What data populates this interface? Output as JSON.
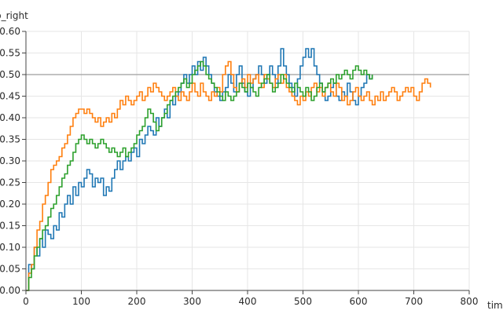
{
  "chart_data": {
    "type": "line",
    "xlabel": "time",
    "ylabel": "p_right",
    "xlim": [
      0,
      800
    ],
    "ylim": [
      0,
      0.6
    ],
    "x_ticks": [
      0,
      100,
      200,
      300,
      400,
      500,
      600,
      700,
      800
    ],
    "y_ticks": [
      0.0,
      0.05,
      0.1,
      0.15,
      0.2,
      0.25,
      0.3,
      0.35,
      0.4,
      0.45,
      0.5,
      0.55,
      0.6
    ],
    "y_tick_labels": [
      "0.00",
      "0.05",
      "0.10",
      "0.15",
      "0.20",
      "0.25",
      "0.30",
      "0.35",
      "0.40",
      "0.45",
      "0.50",
      "0.55",
      "0.60"
    ],
    "grid": true,
    "reference_line": {
      "y": 0.5,
      "color": "#9e9e9e"
    },
    "series": [
      {
        "color": "#1f77b4",
        "step": true,
        "x": [
          0,
          5,
          10,
          15,
          20,
          25,
          30,
          35,
          40,
          45,
          50,
          55,
          60,
          65,
          70,
          75,
          80,
          85,
          90,
          95,
          100,
          105,
          110,
          115,
          120,
          125,
          130,
          135,
          140,
          145,
          150,
          155,
          160,
          165,
          170,
          175,
          180,
          185,
          190,
          195,
          200,
          205,
          210,
          215,
          220,
          225,
          230,
          235,
          240,
          245,
          250,
          255,
          260,
          265,
          270,
          275,
          280,
          285,
          290,
          295,
          300,
          305,
          310,
          315,
          320,
          325,
          330,
          335,
          340,
          345,
          350,
          355,
          360,
          365,
          370,
          375,
          380,
          385,
          390,
          395,
          400,
          405,
          410,
          415,
          420,
          425,
          430,
          435,
          440,
          445,
          450,
          455,
          460,
          465,
          470,
          475,
          480,
          485,
          490,
          495,
          500,
          505,
          510,
          515,
          520,
          525,
          530,
          535,
          540,
          545,
          550,
          555,
          560,
          565,
          570,
          575,
          580,
          585,
          590,
          595,
          600,
          605,
          610,
          615,
          620,
          625
        ],
        "y": [
          0.0,
          0.06,
          0.05,
          0.1,
          0.08,
          0.12,
          0.1,
          0.14,
          0.13,
          0.12,
          0.15,
          0.14,
          0.18,
          0.17,
          0.2,
          0.22,
          0.2,
          0.24,
          0.22,
          0.25,
          0.24,
          0.26,
          0.28,
          0.27,
          0.24,
          0.26,
          0.25,
          0.26,
          0.22,
          0.24,
          0.23,
          0.26,
          0.28,
          0.3,
          0.28,
          0.3,
          0.31,
          0.3,
          0.32,
          0.33,
          0.31,
          0.35,
          0.34,
          0.36,
          0.38,
          0.37,
          0.36,
          0.4,
          0.38,
          0.4,
          0.42,
          0.4,
          0.44,
          0.43,
          0.45,
          0.46,
          0.48,
          0.5,
          0.48,
          0.5,
          0.52,
          0.5,
          0.53,
          0.51,
          0.54,
          0.52,
          0.5,
          0.48,
          0.46,
          0.45,
          0.44,
          0.46,
          0.47,
          0.5,
          0.48,
          0.46,
          0.5,
          0.52,
          0.48,
          0.46,
          0.45,
          0.47,
          0.49,
          0.5,
          0.52,
          0.5,
          0.48,
          0.5,
          0.52,
          0.5,
          0.48,
          0.52,
          0.56,
          0.52,
          0.5,
          0.48,
          0.47,
          0.45,
          0.49,
          0.52,
          0.54,
          0.56,
          0.54,
          0.56,
          0.52,
          0.5,
          0.48,
          0.46,
          0.44,
          0.45,
          0.47,
          0.48,
          0.45,
          0.44,
          0.46,
          0.45,
          0.48,
          0.46,
          0.44,
          0.43,
          0.45,
          0.47,
          0.48,
          0.5,
          0.49,
          0.5
        ]
      },
      {
        "color": "#ff7f0e",
        "step": true,
        "x": [
          0,
          5,
          10,
          15,
          20,
          25,
          30,
          35,
          40,
          45,
          50,
          55,
          60,
          65,
          70,
          75,
          80,
          85,
          90,
          95,
          100,
          105,
          110,
          115,
          120,
          125,
          130,
          135,
          140,
          145,
          150,
          155,
          160,
          165,
          170,
          175,
          180,
          185,
          190,
          195,
          200,
          205,
          210,
          215,
          220,
          225,
          230,
          235,
          240,
          245,
          250,
          255,
          260,
          265,
          270,
          275,
          280,
          285,
          290,
          295,
          300,
          305,
          310,
          315,
          320,
          325,
          330,
          335,
          340,
          345,
          350,
          355,
          360,
          365,
          370,
          375,
          380,
          385,
          390,
          395,
          400,
          405,
          410,
          415,
          420,
          425,
          430,
          435,
          440,
          445,
          450,
          455,
          460,
          465,
          470,
          475,
          480,
          485,
          490,
          495,
          500,
          505,
          510,
          515,
          520,
          525,
          530,
          535,
          540,
          545,
          550,
          555,
          560,
          565,
          570,
          575,
          580,
          585,
          590,
          595,
          600,
          605,
          610,
          615,
          620,
          625,
          630,
          635,
          640,
          645,
          650,
          655,
          660,
          665,
          670,
          675,
          680,
          685,
          690,
          695,
          700,
          705,
          710,
          715,
          720,
          725,
          730
        ],
        "y": [
          0.0,
          0.04,
          0.06,
          0.1,
          0.14,
          0.16,
          0.2,
          0.22,
          0.25,
          0.28,
          0.29,
          0.3,
          0.31,
          0.33,
          0.34,
          0.36,
          0.38,
          0.4,
          0.41,
          0.42,
          0.42,
          0.41,
          0.42,
          0.41,
          0.4,
          0.39,
          0.4,
          0.38,
          0.39,
          0.4,
          0.39,
          0.41,
          0.4,
          0.42,
          0.44,
          0.43,
          0.45,
          0.44,
          0.43,
          0.44,
          0.45,
          0.46,
          0.44,
          0.45,
          0.47,
          0.46,
          0.48,
          0.47,
          0.46,
          0.45,
          0.44,
          0.45,
          0.46,
          0.47,
          0.45,
          0.44,
          0.46,
          0.45,
          0.44,
          0.46,
          0.48,
          0.46,
          0.45,
          0.48,
          0.46,
          0.45,
          0.44,
          0.46,
          0.45,
          0.47,
          0.46,
          0.5,
          0.52,
          0.53,
          0.5,
          0.47,
          0.46,
          0.48,
          0.49,
          0.47,
          0.5,
          0.48,
          0.49,
          0.5,
          0.48,
          0.47,
          0.5,
          0.49,
          0.48,
          0.47,
          0.49,
          0.5,
          0.48,
          0.5,
          0.47,
          0.46,
          0.45,
          0.44,
          0.43,
          0.45,
          0.44,
          0.46,
          0.45,
          0.47,
          0.48,
          0.46,
          0.47,
          0.45,
          0.47,
          0.48,
          0.46,
          0.45,
          0.48,
          0.47,
          0.44,
          0.45,
          0.43,
          0.44,
          0.46,
          0.47,
          0.45,
          0.44,
          0.45,
          0.46,
          0.44,
          0.43,
          0.45,
          0.44,
          0.46,
          0.44,
          0.45,
          0.46,
          0.47,
          0.46,
          0.44,
          0.45,
          0.46,
          0.47,
          0.46,
          0.47,
          0.45,
          0.44,
          0.46,
          0.48,
          0.49,
          0.48,
          0.47
        ]
      },
      {
        "color": "#2ca02c",
        "step": true,
        "x": [
          0,
          5,
          10,
          15,
          20,
          25,
          30,
          35,
          40,
          45,
          50,
          55,
          60,
          65,
          70,
          75,
          80,
          85,
          90,
          95,
          100,
          105,
          110,
          115,
          120,
          125,
          130,
          135,
          140,
          145,
          150,
          155,
          160,
          165,
          170,
          175,
          180,
          185,
          190,
          195,
          200,
          205,
          210,
          215,
          220,
          225,
          230,
          235,
          240,
          245,
          250,
          255,
          260,
          265,
          270,
          275,
          280,
          285,
          290,
          295,
          300,
          305,
          310,
          315,
          320,
          325,
          330,
          335,
          340,
          345,
          350,
          355,
          360,
          365,
          370,
          375,
          380,
          385,
          390,
          395,
          400,
          405,
          410,
          415,
          420,
          425,
          430,
          435,
          440,
          445,
          450,
          455,
          460,
          465,
          470,
          475,
          480,
          485,
          490,
          495,
          500,
          505,
          510,
          515,
          520,
          525,
          530,
          535,
          540,
          545,
          550,
          555,
          560,
          565,
          570,
          575,
          580,
          585,
          590,
          595,
          600,
          605,
          610,
          615,
          620,
          625
        ],
        "y": [
          0.0,
          0.03,
          0.05,
          0.08,
          0.1,
          0.12,
          0.14,
          0.15,
          0.17,
          0.19,
          0.2,
          0.22,
          0.24,
          0.26,
          0.27,
          0.29,
          0.3,
          0.32,
          0.34,
          0.35,
          0.36,
          0.35,
          0.34,
          0.35,
          0.34,
          0.33,
          0.34,
          0.35,
          0.34,
          0.33,
          0.32,
          0.33,
          0.32,
          0.31,
          0.32,
          0.33,
          0.31,
          0.32,
          0.33,
          0.34,
          0.36,
          0.37,
          0.38,
          0.4,
          0.42,
          0.41,
          0.39,
          0.37,
          0.38,
          0.4,
          0.41,
          0.43,
          0.44,
          0.45,
          0.46,
          0.47,
          0.48,
          0.49,
          0.47,
          0.48,
          0.5,
          0.51,
          0.52,
          0.53,
          0.52,
          0.5,
          0.49,
          0.48,
          0.47,
          0.46,
          0.45,
          0.44,
          0.46,
          0.45,
          0.44,
          0.45,
          0.46,
          0.48,
          0.47,
          0.46,
          0.48,
          0.47,
          0.46,
          0.45,
          0.47,
          0.48,
          0.49,
          0.5,
          0.48,
          0.46,
          0.47,
          0.48,
          0.5,
          0.49,
          0.48,
          0.47,
          0.46,
          0.48,
          0.47,
          0.46,
          0.45,
          0.47,
          0.46,
          0.44,
          0.45,
          0.47,
          0.48,
          0.46,
          0.47,
          0.48,
          0.49,
          0.48,
          0.5,
          0.49,
          0.5,
          0.51,
          0.5,
          0.49,
          0.51,
          0.52,
          0.51,
          0.5,
          0.51,
          0.5,
          0.49,
          0.5
        ]
      }
    ]
  }
}
